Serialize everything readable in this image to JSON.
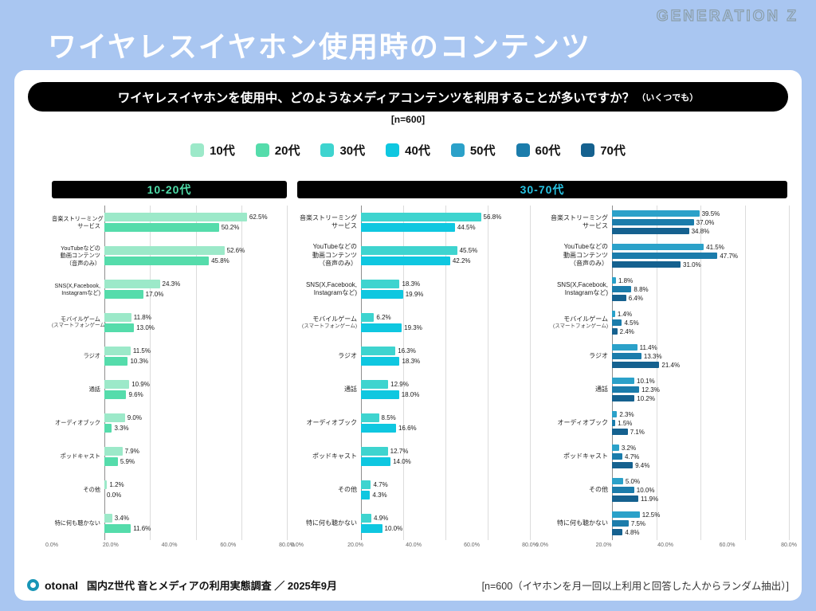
{
  "badge": "GENERATION Z",
  "title": "ワイヤレスイヤホン使用時のコンテンツ",
  "question": {
    "main": "ワイヤレスイヤホンを使用中、どのようなメディアコンテンツを利用することが多いですか？",
    "note": "（いくつでも）",
    "sample": "[n=600]"
  },
  "legend": [
    {
      "label": "10代",
      "color": "#9ce9c9"
    },
    {
      "label": "20代",
      "color": "#55dcab"
    },
    {
      "label": "30代",
      "color": "#3ed4cf"
    },
    {
      "label": "40代",
      "color": "#0fc7e0"
    },
    {
      "label": "50代",
      "color": "#2ba1c9"
    },
    {
      "label": "60代",
      "color": "#1b7cab"
    },
    {
      "label": "70代",
      "color": "#15618f"
    }
  ],
  "groups": [
    {
      "label": "10-20代",
      "color": "#4fdca9"
    },
    {
      "label": "30-70代",
      "color": "#27c3e3"
    }
  ],
  "axis": {
    "max": 80,
    "ticks": [
      {
        "value": 0,
        "label": "0.0%"
      },
      {
        "value": 20,
        "label": "20.0%"
      },
      {
        "value": 40,
        "label": "40.0%"
      },
      {
        "value": 60,
        "label": "60.0%"
      },
      {
        "value": 80,
        "label": "80.0%"
      }
    ]
  },
  "chart_data": [
    {
      "type": "bar",
      "orientation": "horizontal",
      "group": "10-20代",
      "xlim": [
        0,
        80
      ],
      "categories": [
        "音楽ストリーミング\nサービス",
        "YouTubeなどの\n動画コンテンツ\n（音声のみ）",
        "SNS(X,Facebook,\nInstagramなど)",
        "モバイルゲーム\n(スマートフォンゲーム)",
        "ラジオ",
        "通話",
        "オーディオブック",
        "ポッドキャスト",
        "その他",
        "特に何も聴かない"
      ],
      "series": [
        {
          "name": "10代",
          "color": "#9ce9c9",
          "values": [
            62.5,
            52.6,
            24.3,
            11.8,
            11.5,
            10.9,
            9.0,
            7.9,
            1.2,
            3.4
          ]
        },
        {
          "name": "20代",
          "color": "#55dcab",
          "values": [
            50.2,
            45.8,
            17.0,
            13.0,
            10.3,
            9.6,
            3.3,
            5.9,
            0.0,
            11.6
          ]
        }
      ]
    },
    {
      "type": "bar",
      "orientation": "horizontal",
      "group": "30-70代",
      "xlim": [
        0,
        80
      ],
      "categories": [
        "音楽ストリーミング\nサービス",
        "YouTubeなどの\n動画コンテンツ\n（音声のみ）",
        "SNS(X,Facebook,\nInstagramなど)",
        "モバイルゲーム\n(スマートフォンゲーム)",
        "ラジオ",
        "通話",
        "オーディオブック",
        "ポッドキャスト",
        "その他",
        "特に何も聴かない"
      ],
      "series": [
        {
          "name": "30代",
          "color": "#3ed4cf",
          "values": [
            56.8,
            45.5,
            18.3,
            6.2,
            16.3,
            12.9,
            8.5,
            12.7,
            4.7,
            4.9
          ]
        },
        {
          "name": "40代",
          "color": "#0fc7e0",
          "values": [
            44.5,
            42.2,
            19.9,
            19.3,
            18.3,
            18.0,
            16.6,
            14.0,
            4.3,
            10.0
          ]
        }
      ]
    },
    {
      "type": "bar",
      "orientation": "horizontal",
      "group": "30-70代",
      "xlim": [
        0,
        80
      ],
      "categories": [
        "音楽ストリーミング\nサービス",
        "YouTubeなどの\n動画コンテンツ\n（音声のみ）",
        "SNS(X,Facebook,\nInstagramなど)",
        "モバイルゲーム\n(スマートフォンゲーム)",
        "ラジオ",
        "通話",
        "オーディオブック",
        "ポッドキャスト",
        "その他",
        "特に何も聴かない"
      ],
      "series": [
        {
          "name": "50代",
          "color": "#2ba1c9",
          "values": [
            39.5,
            41.5,
            1.8,
            1.4,
            11.4,
            10.1,
            2.3,
            3.2,
            5.0,
            12.5
          ]
        },
        {
          "name": "60代",
          "color": "#1b7cab",
          "values": [
            37.0,
            47.7,
            8.8,
            4.5,
            13.3,
            12.3,
            1.5,
            4.7,
            10.0,
            7.5
          ]
        },
        {
          "name": "70代",
          "color": "#15618f",
          "values": [
            34.8,
            31.0,
            6.4,
            2.4,
            21.4,
            10.2,
            7.1,
            9.4,
            11.9,
            4.8
          ]
        }
      ]
    }
  ],
  "footer": {
    "logo": "otonal",
    "left": "国内Z世代 音とメディアの利用実態調査 ／ 2025年9月",
    "right": "[n=600（イヤホンを月一回以上利用と回答した人からランダム抽出）]"
  }
}
